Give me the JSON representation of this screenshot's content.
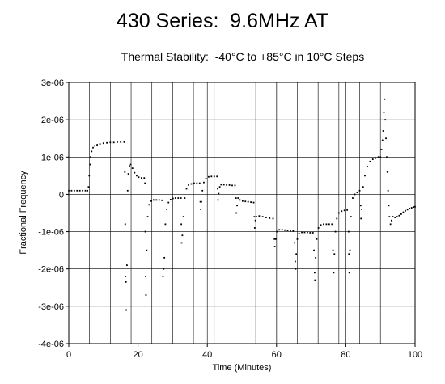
{
  "page": {
    "title": "430 Series:  9.6MHz AT",
    "subtitle": "Thermal Stability:  -40°C to +85°C in 10°C Steps"
  },
  "chart_data": {
    "type": "scatter",
    "title": "430 Series:  9.6MHz AT",
    "subtitle": "Thermal Stability:  -40°C to +85°C in 10°C Steps",
    "xlabel": "Time (Minutes)",
    "ylabel": "Fractional Frequency",
    "xlim": [
      0,
      100
    ],
    "ylim": [
      -4e-06,
      3e-06
    ],
    "x_ticks": [
      0,
      20,
      40,
      60,
      80,
      100
    ],
    "x_tick_labels": [
      "0",
      "20",
      "40",
      "60",
      "80",
      "100"
    ],
    "x_minor_grid": [
      6,
      12,
      18,
      24,
      30,
      36,
      42,
      48,
      54,
      60,
      66,
      72,
      78,
      84,
      90
    ],
    "y_ticks": [
      -4e-06,
      -3e-06,
      -2e-06,
      -1e-06,
      0,
      1e-06,
      2e-06,
      3e-06
    ],
    "y_tick_labels": [
      "-4e-06",
      "-3e-06",
      "-2e-06",
      "-1e-06",
      "0",
      "1e-06",
      "2e-06",
      "3e-06"
    ],
    "grid": true,
    "marker_color": "#000000",
    "series": [
      {
        "points": [
          [
            0.0,
            1e-07
          ],
          [
            0.8,
            1e-07
          ],
          [
            1.6,
            1e-07
          ],
          [
            2.4,
            1e-07
          ],
          [
            3.2,
            1e-07
          ],
          [
            4.0,
            1e-07
          ],
          [
            4.8,
            1e-07
          ],
          [
            5.4,
            1e-07
          ],
          [
            5.7,
            2e-07
          ],
          [
            5.9,
            5e-07
          ],
          [
            6.1,
            8e-07
          ],
          [
            6.3,
            1e-06
          ],
          [
            6.6,
            1.15e-06
          ],
          [
            7.0,
            1.25e-06
          ],
          [
            7.5,
            1.3e-06
          ],
          [
            8.2,
            1.33e-06
          ],
          [
            9.0,
            1.35e-06
          ],
          [
            10.0,
            1.37e-06
          ],
          [
            11.0,
            1.38e-06
          ],
          [
            12.0,
            1.39e-06
          ],
          [
            13.0,
            1.39e-06
          ],
          [
            14.0,
            1.4e-06
          ],
          [
            15.0,
            1.4e-06
          ],
          [
            16.0,
            1.4e-06
          ],
          [
            16.2,
            6e-07
          ],
          [
            16.3,
            -8e-07
          ],
          [
            16.4,
            -2.2e-06
          ],
          [
            16.5,
            -2.35e-06
          ],
          [
            16.6,
            -3.1e-06
          ],
          [
            16.8,
            -1.9e-06
          ],
          [
            17.0,
            1e-07
          ],
          [
            17.2,
            5.5e-07
          ],
          [
            17.5,
            7.6e-07
          ],
          [
            17.9,
            8e-07
          ],
          [
            18.4,
            7e-07
          ],
          [
            19.0,
            5.8e-07
          ],
          [
            19.6,
            5e-07
          ],
          [
            20.2,
            4.6e-07
          ],
          [
            21.0,
            4.4e-07
          ],
          [
            21.8,
            4.4e-07
          ],
          [
            22.0,
            3e-07
          ],
          [
            22.1,
            -1e-06
          ],
          [
            22.2,
            -2.2e-06
          ],
          [
            22.3,
            -2.7e-06
          ],
          [
            22.5,
            -1.5e-06
          ],
          [
            22.8,
            -6e-07
          ],
          [
            23.2,
            -2.8e-07
          ],
          [
            23.8,
            -1.8e-07
          ],
          [
            24.5,
            -1.5e-07
          ],
          [
            25.3,
            -1.5e-07
          ],
          [
            26.1,
            -1.5e-07
          ],
          [
            26.9,
            -1.6e-07
          ],
          [
            27.2,
            -2.2e-06
          ],
          [
            27.4,
            -2e-06
          ],
          [
            27.6,
            -1.7e-06
          ],
          [
            27.9,
            -8e-07
          ],
          [
            28.3,
            -4e-07
          ],
          [
            28.8,
            -2.2e-07
          ],
          [
            29.4,
            -1.4e-07
          ],
          [
            30.1,
            -1.1e-07
          ],
          [
            30.8,
            -1e-07
          ],
          [
            31.6,
            -1e-07
          ],
          [
            32.4,
            -1e-07
          ],
          [
            32.5,
            -8e-07
          ],
          [
            32.6,
            -1.3e-06
          ],
          [
            32.8,
            -1.1e-06
          ],
          [
            33.1,
            -6e-07
          ],
          [
            33.5,
            -1e-07
          ],
          [
            34.0,
            1.5e-07
          ],
          [
            34.6,
            2.5e-07
          ],
          [
            35.4,
            2.8e-07
          ],
          [
            36.2,
            3e-07
          ],
          [
            37.0,
            3e-07
          ],
          [
            37.8,
            3e-07
          ],
          [
            38.0,
            -2e-07
          ],
          [
            38.1,
            -4e-07
          ],
          [
            38.3,
            -2e-07
          ],
          [
            38.6,
            1e-07
          ],
          [
            39.0,
            3.2e-07
          ],
          [
            39.6,
            4.2e-07
          ],
          [
            40.4,
            4.7e-07
          ],
          [
            41.2,
            4.8e-07
          ],
          [
            42.0,
            4.8e-07
          ],
          [
            42.8,
            4.8e-07
          ],
          [
            43.0,
            1.5e-07
          ],
          [
            43.1,
            -1.5e-07
          ],
          [
            43.3,
            2e-08
          ],
          [
            43.6,
            2e-07
          ],
          [
            44.0,
            2.6e-07
          ],
          [
            44.8,
            2.6e-07
          ],
          [
            45.6,
            2.5e-07
          ],
          [
            46.4,
            2.5e-07
          ],
          [
            47.2,
            2.4e-07
          ],
          [
            48.0,
            2.4e-07
          ],
          [
            48.3,
            -1e-07
          ],
          [
            48.4,
            -5e-07
          ],
          [
            48.6,
            -3e-07
          ],
          [
            48.9,
            -1e-07
          ],
          [
            49.4,
            -1.5e-07
          ],
          [
            50.2,
            -1.8e-07
          ],
          [
            51.0,
            -1.9e-07
          ],
          [
            51.8,
            -2e-07
          ],
          [
            52.6,
            -2.1e-07
          ],
          [
            53.4,
            -2.2e-07
          ],
          [
            53.6,
            -6e-07
          ],
          [
            53.7,
            -9e-07
          ],
          [
            53.9,
            -7e-07
          ],
          [
            54.2,
            -6e-07
          ],
          [
            55.0,
            -5.8e-07
          ],
          [
            56.0,
            -6e-07
          ],
          [
            57.0,
            -6.2e-07
          ],
          [
            58.0,
            -6.4e-07
          ],
          [
            59.0,
            -6.5e-07
          ],
          [
            59.4,
            -1.2e-06
          ],
          [
            59.5,
            -1.4e-06
          ],
          [
            59.7,
            -1.2e-06
          ],
          [
            60.1,
            -1e-06
          ],
          [
            60.8,
            -9.5e-07
          ],
          [
            61.6,
            -9.5e-07
          ],
          [
            62.4,
            -9.6e-07
          ],
          [
            63.2,
            -9.7e-07
          ],
          [
            64.0,
            -9.8e-07
          ],
          [
            64.8,
            -9.8e-07
          ],
          [
            65.2,
            -1.3e-06
          ],
          [
            65.4,
            -1.8e-06
          ],
          [
            65.5,
            -2e-06
          ],
          [
            65.7,
            -1.6e-06
          ],
          [
            66.0,
            -1.2e-06
          ],
          [
            66.5,
            -1.05e-06
          ],
          [
            67.3,
            -1.02e-06
          ],
          [
            68.1,
            -1.02e-06
          ],
          [
            68.9,
            -1.02e-06
          ],
          [
            69.7,
            -1.03e-06
          ],
          [
            70.5,
            -1.03e-06
          ],
          [
            70.8,
            -1.5e-06
          ],
          [
            71.0,
            -2.1e-06
          ],
          [
            71.1,
            -2.3e-06
          ],
          [
            71.3,
            -1.7e-06
          ],
          [
            71.6,
            -1.2e-06
          ],
          [
            72.1,
            -9e-07
          ],
          [
            72.8,
            -8.2e-07
          ],
          [
            73.6,
            -8e-07
          ],
          [
            74.4,
            -8e-07
          ],
          [
            75.2,
            -8e-07
          ],
          [
            76.0,
            -8e-07
          ],
          [
            76.3,
            -1.5e-06
          ],
          [
            76.5,
            -2.1e-06
          ],
          [
            76.7,
            -1.6e-06
          ],
          [
            77.0,
            -1e-06
          ],
          [
            77.4,
            -6.5e-07
          ],
          [
            78.0,
            -5e-07
          ],
          [
            78.8,
            -4.5e-07
          ],
          [
            79.6,
            -4.3e-07
          ],
          [
            80.4,
            -4.2e-07
          ],
          [
            80.8,
            -1e-06
          ],
          [
            80.9,
            -1.6e-06
          ],
          [
            81.0,
            -2.1e-06
          ],
          [
            81.2,
            -1.5e-06
          ],
          [
            81.5,
            -6e-07
          ],
          [
            82.0,
            -1e-07
          ],
          [
            82.6,
            0.0
          ],
          [
            83.3,
            5e-08
          ],
          [
            84.0,
            1e-07
          ],
          [
            84.3,
            -3e-07
          ],
          [
            84.4,
            -6.5e-07
          ],
          [
            84.6,
            -4e-07
          ],
          [
            85.0,
            2e-07
          ],
          [
            85.5,
            5e-07
          ],
          [
            86.2,
            7.5e-07
          ],
          [
            87.0,
            8.8e-07
          ],
          [
            87.8,
            9.4e-07
          ],
          [
            88.6,
            9.7e-07
          ],
          [
            89.4,
            1e-06
          ],
          [
            90.0,
            1e-06
          ],
          [
            90.3,
            1.2e-06
          ],
          [
            90.6,
            1.45e-06
          ],
          [
            90.8,
            1.7e-06
          ],
          [
            91.0,
            2.2e-06
          ],
          [
            91.2,
            2.55e-06
          ],
          [
            91.4,
            2e-06
          ],
          [
            91.6,
            1.5e-06
          ],
          [
            91.8,
            1e-06
          ],
          [
            92.0,
            6e-07
          ],
          [
            92.2,
            1e-07
          ],
          [
            92.4,
            -3e-07
          ],
          [
            92.6,
            -6e-07
          ],
          [
            92.9,
            -8e-07
          ],
          [
            93.2,
            -7e-07
          ],
          [
            93.6,
            -6e-07
          ],
          [
            94.2,
            -6.2e-07
          ],
          [
            94.8,
            -6e-07
          ],
          [
            95.4,
            -5.7e-07
          ],
          [
            96.0,
            -5.3e-07
          ],
          [
            96.6,
            -4.8e-07
          ],
          [
            97.2,
            -4.4e-07
          ],
          [
            97.8,
            -4.1e-07
          ],
          [
            98.4,
            -3.8e-07
          ],
          [
            99.0,
            -3.6e-07
          ],
          [
            99.6,
            -3.4e-07
          ],
          [
            100.0,
            -3.3e-07
          ]
        ]
      }
    ]
  }
}
